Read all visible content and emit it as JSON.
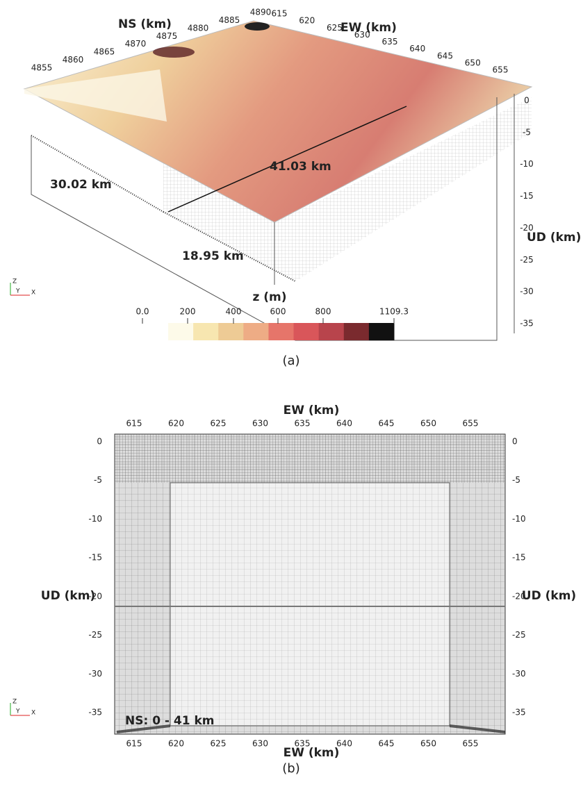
{
  "panel_a": {
    "ns_label": "NS (km)",
    "ns_ticks": [
      "4855",
      "4860",
      "4865",
      "4870",
      "4875",
      "4880",
      "4885",
      "4890"
    ],
    "ew_label": "EW (km)",
    "ew_ticks": [
      "615",
      "620",
      "625",
      "630",
      "635",
      "640",
      "645",
      "650",
      "655"
    ],
    "ud_label": "UD (km)",
    "ud_ticks": [
      "0",
      "-5",
      "-10",
      "-15",
      "-20",
      "-25",
      "-30",
      "-35"
    ],
    "dimensions": [
      "30.02 km",
      "41.03 km",
      "18.95 km"
    ],
    "colorbar_title": "z (m)",
    "colorbar_ticks": [
      "0.0",
      "200",
      "400",
      "600",
      "800",
      "1109.3"
    ],
    "triad": [
      "Z",
      "Y",
      "X"
    ],
    "caption": "(a)"
  },
  "panel_b": {
    "top_label": "EW (km)",
    "top_ticks": [
      "615",
      "620",
      "625",
      "630",
      "635",
      "640",
      "645",
      "650",
      "655"
    ],
    "bottom_label": "EW (km)",
    "bottom_ticks": [
      "615",
      "620",
      "625",
      "630",
      "635",
      "640",
      "645",
      "650",
      "655"
    ],
    "left_label": "UD (km)",
    "left_ticks": [
      "0",
      "-5",
      "-10",
      "-15",
      "-20",
      "-25",
      "-30",
      "-35"
    ],
    "right_label": "UD (km)",
    "right_ticks": [
      "0",
      "-5",
      "-10",
      "-15",
      "-20",
      "-25",
      "-30",
      "-35"
    ],
    "ns_note": "NS: 0 - 41 km",
    "triad": [
      "Z",
      "Y",
      "X"
    ],
    "caption": "(b)"
  }
}
